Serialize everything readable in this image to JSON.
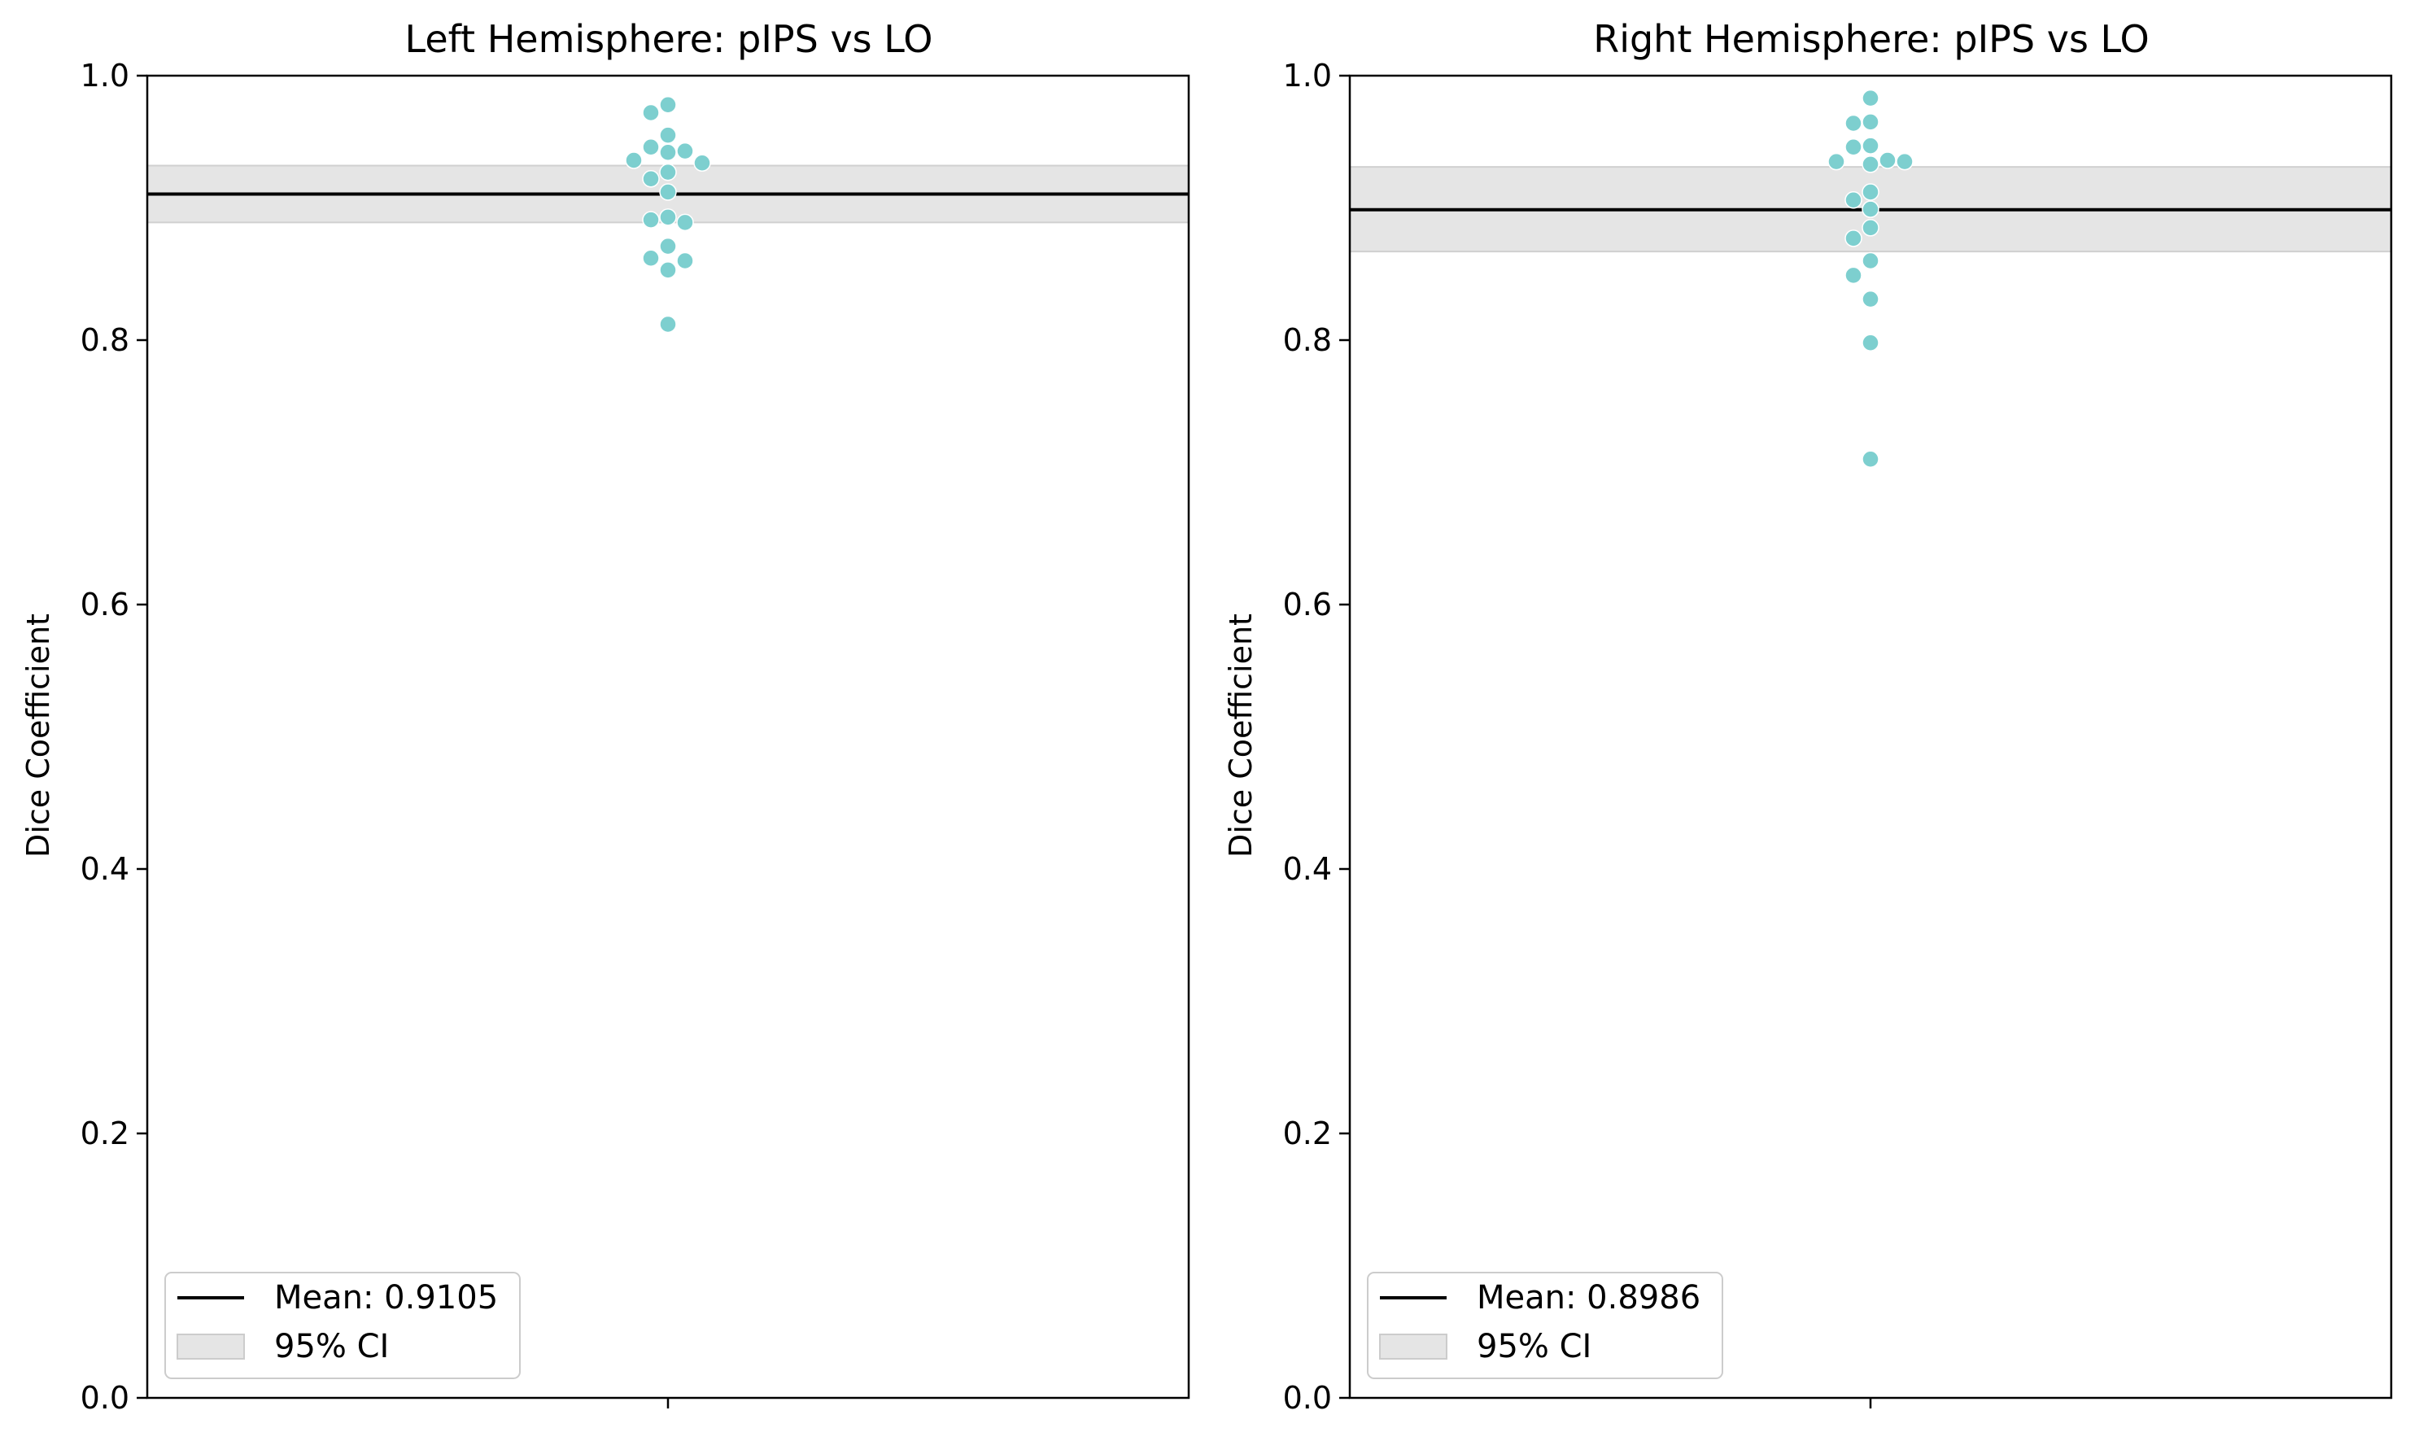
{
  "chart_data": [
    {
      "type": "scatter",
      "subtype": "swarm",
      "title": "Left Hemisphere: pIPS vs LO",
      "xlabel": "",
      "ylabel": "Dice Coefficient",
      "ylim": [
        0.0,
        1.0
      ],
      "yticks": [
        "0.0",
        "0.2",
        "0.4",
        "0.6",
        "0.8",
        "1.0"
      ],
      "grid": false,
      "legend_position": "lower-left",
      "point_color": "#7dcfcf",
      "mean": 0.9105,
      "ci": [
        0.889,
        0.932
      ],
      "legend": {
        "mean_label": "Mean: 0.9105",
        "ci_label": "95% CI"
      },
      "values": [
        0.978,
        0.972,
        0.955,
        0.946,
        0.943,
        0.942,
        0.936,
        0.934,
        0.927,
        0.922,
        0.912,
        0.893,
        0.891,
        0.889,
        0.871,
        0.862,
        0.86,
        0.853,
        0.812
      ]
    },
    {
      "type": "scatter",
      "subtype": "swarm",
      "title": "Right Hemisphere: pIPS vs LO",
      "xlabel": "",
      "ylabel": "Dice Coefficient",
      "ylim": [
        0.0,
        1.0
      ],
      "yticks": [
        "0.0",
        "0.2",
        "0.4",
        "0.6",
        "0.8",
        "1.0"
      ],
      "grid": false,
      "legend_position": "lower-left",
      "point_color": "#7dcfcf",
      "mean": 0.8986,
      "ci": [
        0.867,
        0.931
      ],
      "legend": {
        "mean_label": "Mean: 0.8986",
        "ci_label": "95% CI"
      },
      "values": [
        0.983,
        0.965,
        0.964,
        0.947,
        0.946,
        0.936,
        0.935,
        0.935,
        0.933,
        0.912,
        0.906,
        0.899,
        0.885,
        0.877,
        0.86,
        0.849,
        0.831,
        0.798,
        0.71
      ]
    }
  ]
}
